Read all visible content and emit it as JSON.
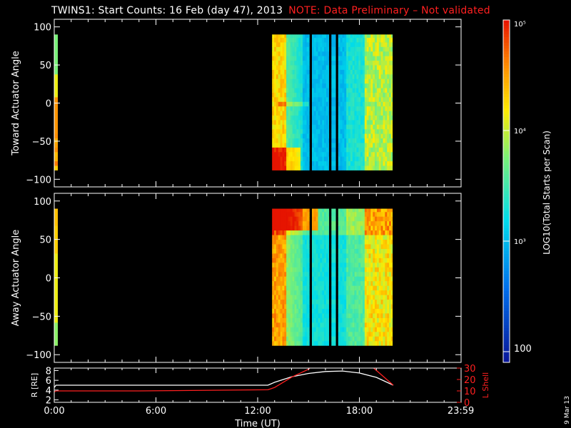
{
  "title": "TWINS1: Start Counts: 16 Feb (day  47), 2013",
  "note": "NOTE: Data Preliminary – Not validated",
  "stamp": "9 Mar 13",
  "colors": {
    "background": "#000000",
    "note": "#ff2020",
    "r_line": "#ffffff",
    "lshell_line": "#ff2020"
  },
  "chart_data": [
    {
      "type": "heatmap",
      "name": "toward-panel",
      "ylabel": "Toward Actuator Angle",
      "xlim": [
        0,
        24
      ],
      "ylim": [
        -110,
        110
      ],
      "yticks": [
        100,
        50,
        0,
        -50,
        -100
      ],
      "data_y_range": [
        -88,
        90
      ],
      "strips": [
        {
          "x0": 0.0,
          "x1": 0.2
        },
        {
          "x0": 12.85,
          "x1": 15.05
        },
        {
          "x0": 15.2,
          "x1": 16.2
        },
        {
          "x0": 16.35,
          "x1": 16.6
        },
        {
          "x0": 16.75,
          "x1": 19.95
        }
      ]
    },
    {
      "type": "heatmap",
      "name": "away-panel",
      "ylabel": "Away Actuator Angle",
      "xlim": [
        0,
        24
      ],
      "ylim": [
        -110,
        110
      ],
      "yticks": [
        100,
        50,
        0,
        -50,
        -100
      ],
      "data_y_range": [
        -88,
        90
      ],
      "strips": [
        {
          "x0": 0.0,
          "x1": 0.2
        },
        {
          "x0": 12.85,
          "x1": 15.05
        },
        {
          "x0": 15.2,
          "x1": 16.2
        },
        {
          "x0": 16.35,
          "x1": 16.6
        },
        {
          "x0": 16.75,
          "x1": 19.95
        }
      ]
    },
    {
      "type": "line",
      "name": "ephemeris-panel",
      "xlabel": "Time (UT)",
      "xtick_labels": [
        "0:00",
        "6:00",
        "12:00",
        "18:00",
        "23:59"
      ],
      "xticks": [
        0,
        6,
        12,
        18,
        23.983
      ],
      "ylabel_left": "R [RE]",
      "ylim_left": [
        1.5,
        8.5
      ],
      "yticks_left": [
        2,
        4,
        6,
        8
      ],
      "ylabel_right": "L Shell",
      "ylim_right": [
        0,
        30
      ],
      "yticks_right": [
        0,
        10,
        20,
        30
      ],
      "series": [
        {
          "x": [
            0,
            0.1,
            12.6,
            13.0,
            14.0,
            15.0,
            16.0,
            17.0,
            18.0,
            19.0,
            20.0
          ],
          "y": [
            4.5,
            5.0,
            5.0,
            5.6,
            6.7,
            7.4,
            7.8,
            7.9,
            7.5,
            6.6,
            5.0
          ]
        },
        {
          "x": [
            0,
            0.1,
            5.0,
            12.6,
            13.0,
            14.0,
            15.0,
            15.3,
            18.6,
            19.0,
            20.0
          ],
          "y": [
            9,
            10,
            10,
            11,
            13,
            22,
            29,
            33,
            33,
            28,
            15
          ]
        }
      ]
    },
    {
      "type": "colorbar",
      "label": "LOG10(Total Starts per Scan)",
      "tick_labels": [
        "10⁵",
        "10⁴",
        "10³",
        "100"
      ],
      "tick_values": [
        100000,
        10000,
        1000,
        100
      ],
      "range": [
        80,
        100000
      ]
    }
  ]
}
